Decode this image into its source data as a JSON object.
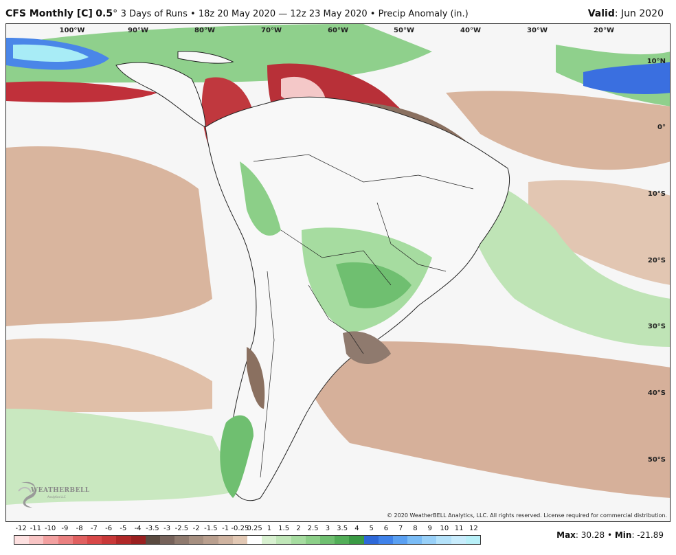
{
  "header": {
    "model": "CFS Monthly [C]",
    "resolution": "0.5",
    "degree": "°",
    "description": "3 Days of Runs • 18z 20 May 2020 — 12z 23 May 2020 • Precip Anomaly (in.)",
    "valid_label": "Valid",
    "valid_value": ": Jun 2020"
  },
  "map": {
    "lon_labels": [
      "100°W",
      "90°W",
      "80°W",
      "70°W",
      "60°W",
      "50°W",
      "40°W",
      "30°W",
      "20°W"
    ],
    "lat_labels": [
      "10°N",
      "0°",
      "10°S",
      "20°S",
      "30°S",
      "40°S",
      "50°S"
    ],
    "copyright": "© 2020 WeatherBELL Analytics, LLC. All rights reserved. License required for commercial distribution.",
    "logo_text": "WEATHERBELL",
    "logo_sub": "Analytics LLC"
  },
  "legend": {
    "labels": [
      "-12",
      "-11",
      "-10",
      "-9",
      "-8",
      "-7",
      "-6",
      "-5",
      "-4",
      "-3.5",
      "-3",
      "-2.5",
      "-2",
      "-1.5",
      "-1",
      "-0.25",
      "0.25",
      "1",
      "1.5",
      "2",
      "2.5",
      "3",
      "3.5",
      "4",
      "5",
      "6",
      "7",
      "8",
      "9",
      "10",
      "11",
      "12"
    ],
    "colors": [
      "#fde0e0",
      "#f8c4c4",
      "#f2a0a0",
      "#ea8080",
      "#e06060",
      "#d84848",
      "#c83838",
      "#b02828",
      "#9a2020",
      "#5a4a40",
      "#76625a",
      "#8f7a6e",
      "#a68f80",
      "#b99f8e",
      "#cfb3a0",
      "#e2c8b4",
      "#ffffff",
      "#d8f0d0",
      "#c0e6b8",
      "#a6dca0",
      "#8ccf88",
      "#6fbf70",
      "#52ae58",
      "#3a9a44",
      "#2e68d8",
      "#3f82ea",
      "#5aa0f2",
      "#7abcf6",
      "#98d0f8",
      "#b4e2fa",
      "#c8ecfc",
      "#b8f0f8"
    ]
  },
  "stats": {
    "max_label": "Max",
    "max_value": ": 30.28",
    "sep": " • ",
    "min_label": "Min",
    "min_value": ": -21.89"
  }
}
